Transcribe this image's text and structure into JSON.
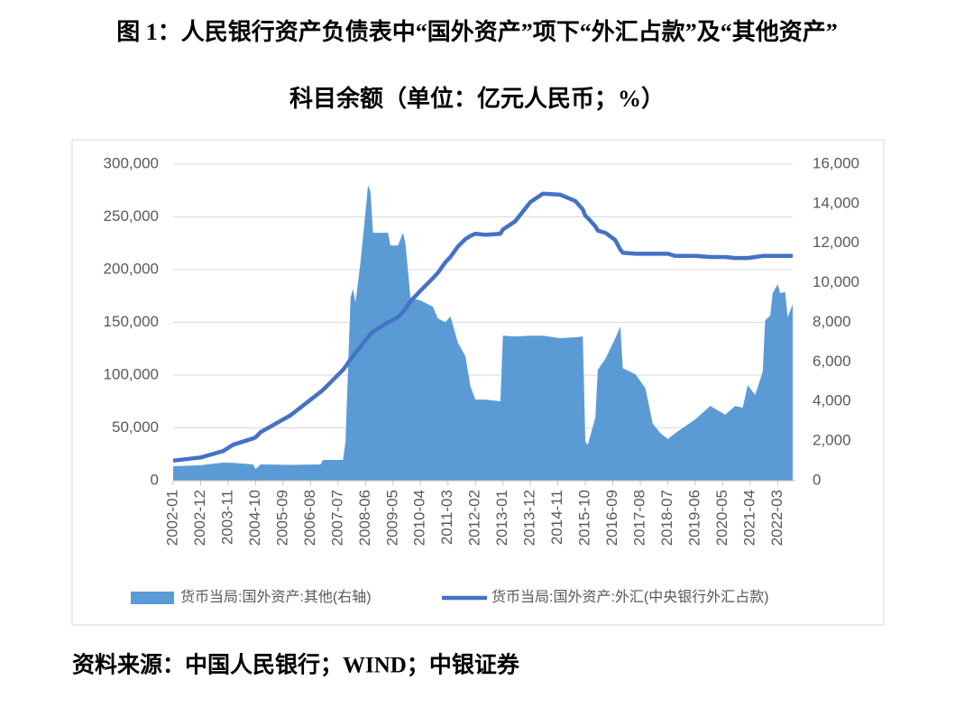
{
  "chart_data": {
    "type": "combo",
    "title": "图 1：人民银行资产负债表中“国外资产”项下“外汇占款”及“其他资产”",
    "subtitle": "科目余额（单位：亿元人民币；%）",
    "source": "资料来源：中国人民银行；WIND；中银证券",
    "x": [
      "2002-01",
      "2002-12",
      "2003-09",
      "2004-01",
      "2004-09",
      "2004-10",
      "2004-12",
      "2005-12",
      "2006-12",
      "2007-01",
      "2007-09",
      "2007-10",
      "2007-12",
      "2008-01",
      "2008-02",
      "2008-04",
      "2008-06",
      "2008-07",
      "2008-08",
      "2008-09",
      "2009-03",
      "2009-04",
      "2009-07",
      "2009-09",
      "2009-10",
      "2009-12",
      "2010-04",
      "2010-09",
      "2010-11",
      "2011-02",
      "2011-04",
      "2011-07",
      "2011-10",
      "2011-12",
      "2012-02",
      "2012-06",
      "2012-12",
      "2013-01",
      "2013-06",
      "2013-12",
      "2014-05",
      "2014-12",
      "2015-06",
      "2015-09",
      "2015-10",
      "2015-11",
      "2016-02",
      "2016-03",
      "2016-06",
      "2016-10",
      "2016-12",
      "2017-01",
      "2017-06",
      "2017-10",
      "2018-01",
      "2018-04",
      "2018-07",
      "2018-10",
      "2019-06",
      "2019-12",
      "2020-06",
      "2020-10",
      "2021-01",
      "2021-03",
      "2021-06",
      "2021-09",
      "2021-10",
      "2021-12",
      "2022-01",
      "2022-03",
      "2022-04",
      "2022-06",
      "2022-07",
      "2022-09"
    ],
    "xlim": [
      "2002-01",
      "2022-09"
    ],
    "xticks": [
      "2002-01",
      "2002-12",
      "2003-11",
      "2004-10",
      "2005-09",
      "2006-08",
      "2007-07",
      "2008-06",
      "2009-05",
      "2010-04",
      "2011-03",
      "2012-02",
      "2013-01",
      "2013-12",
      "2014-11",
      "2015-10",
      "2016-09",
      "2017-08",
      "2018-07",
      "2019-06",
      "2020-05",
      "2021-04",
      "2022-03"
    ],
    "ylim": [
      0,
      300000
    ],
    "yticks": [
      0,
      {
        "value": 50000,
        "label": "50,000"
      },
      {
        "value": 100000,
        "label": "100,000"
      },
      {
        "value": 150000,
        "label": "150,000"
      },
      {
        "value": 200000,
        "label": "200,000"
      },
      {
        "value": 250000,
        "label": "250,000"
      },
      {
        "value": 300000,
        "label": "300,000"
      }
    ],
    "y2lim": [
      0,
      16000
    ],
    "y2ticks": [
      0,
      {
        "value": 2000,
        "label": "2,000"
      },
      {
        "value": 4000,
        "label": "4,000"
      },
      {
        "value": 6000,
        "label": "6,000"
      },
      {
        "value": 8000,
        "label": "8,000"
      },
      {
        "value": 10000,
        "label": "10,000"
      },
      {
        "value": 12000,
        "label": "12,000"
      },
      {
        "value": 14000,
        "label": "14,000"
      },
      {
        "value": 16000,
        "label": "16,000"
      }
    ],
    "grid": true,
    "legend": "bottom",
    "series": [
      {
        "name": "货币当局:国外资产:其他(右轴)",
        "type": "area",
        "axis": "y2",
        "color": "#5b9bd5",
        "values": [
          730,
          780,
          910,
          900,
          820,
          590,
          820,
          800,
          820,
          1050,
          1050,
          1960,
          9250,
          9700,
          9000,
          11070,
          13580,
          14940,
          14620,
          12530,
          12530,
          11890,
          11890,
          12530,
          11980,
          9250,
          9110,
          8790,
          8200,
          8020,
          8300,
          6970,
          6290,
          4780,
          4100,
          4100,
          4010,
          7330,
          7290,
          7330,
          7330,
          7200,
          7250,
          7290,
          1960,
          1820,
          3190,
          5600,
          6150,
          7200,
          7790,
          5690,
          5380,
          4690,
          2870,
          2410,
          2100,
          2400,
          3100,
          3780,
          3330,
          3780,
          3690,
          4830,
          4330,
          5510,
          8110,
          8340,
          9480,
          9930,
          9480,
          9530,
          8250,
          8930
        ]
      },
      {
        "name": "货币当局:国外资产:外汇(中央银行外汇占款)",
        "type": "line",
        "color": "#4472c4",
        "values": [
          19000,
          22000,
          28000,
          34000,
          40000,
          41000,
          46000,
          62000,
          84000,
          86000,
          105000,
          108000,
          115000,
          118000,
          121000,
          127000,
          133000,
          136000,
          139000,
          141000,
          150000,
          151000,
          155000,
          160000,
          163000,
          170000,
          180000,
          192000,
          197000,
          207000,
          212000,
          222000,
          229000,
          232000,
          234000,
          233000,
          234000,
          238000,
          246000,
          264000,
          272000,
          271000,
          265000,
          257000,
          251000,
          249000,
          241000,
          237000,
          235000,
          228000,
          219000,
          216000,
          215000,
          215000,
          215000,
          215000,
          215000,
          213000,
          213000,
          212000,
          212000,
          211000,
          211000,
          211000,
          212000,
          213000,
          213000,
          213000,
          213000,
          213000,
          213000,
          213000,
          213000,
          213000
        ]
      }
    ]
  }
}
